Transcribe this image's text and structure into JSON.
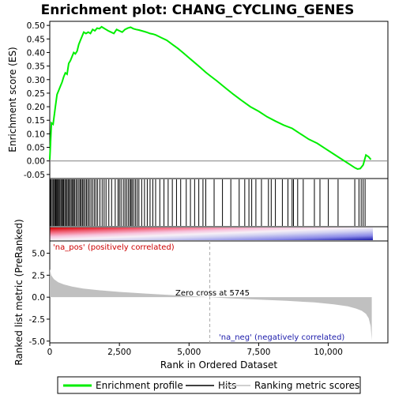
{
  "chart_data": {
    "type": "line",
    "title": "Enrichment plot: CHANG_CYCLING_GENES",
    "x_label": "Rank in Ordered Dataset",
    "x_range": [
      0,
      11600
    ],
    "x_ticks": [
      0,
      2500,
      5000,
      7500,
      10000
    ],
    "x_tick_labels": [
      "0",
      "2,500",
      "5,000",
      "7,500",
      "10,000"
    ],
    "top_panel": {
      "ylabel": "Enrichment score (ES)",
      "ylim": [
        -0.065,
        0.515
      ],
      "y_ticks": [
        -0.05,
        0.0,
        0.05,
        0.1,
        0.15,
        0.2,
        0.25,
        0.3,
        0.35,
        0.4,
        0.45,
        0.5
      ],
      "y_tick_labels": [
        "-0.05",
        "0.00",
        "0.05",
        "0.10",
        "0.15",
        "0.20",
        "0.25",
        "0.30",
        "0.35",
        "0.40",
        "0.45",
        "0.50"
      ],
      "series": [
        {
          "name": "Enrichment profile",
          "color": "#00ee00",
          "x": [
            0,
            60,
            120,
            200,
            260,
            320,
            380,
            440,
            500,
            560,
            620,
            680,
            740,
            800,
            860,
            920,
            980,
            1040,
            1100,
            1160,
            1220,
            1300,
            1380,
            1460,
            1540,
            1620,
            1700,
            1780,
            1860,
            1940,
            2020,
            2100,
            2200,
            2300,
            2400,
            2500,
            2600,
            2700,
            2800,
            2900,
            3000,
            3100,
            3200,
            3300,
            3400,
            3500,
            3600,
            3700,
            3800,
            3900,
            4000,
            4200,
            4400,
            4600,
            4800,
            5000,
            5200,
            5400,
            5600,
            5745,
            6000,
            6300,
            6600,
            6900,
            7200,
            7500,
            7800,
            8100,
            8400,
            8700,
            9000,
            9300,
            9600,
            9900,
            10200,
            10500,
            10800,
            10950,
            11050,
            11150,
            11250,
            11350,
            11450,
            11530
          ],
          "y": [
            0.005,
            0.14,
            0.135,
            0.2,
            0.245,
            0.26,
            0.275,
            0.29,
            0.31,
            0.325,
            0.32,
            0.36,
            0.37,
            0.385,
            0.4,
            0.395,
            0.405,
            0.43,
            0.445,
            0.46,
            0.475,
            0.47,
            0.475,
            0.47,
            0.485,
            0.48,
            0.49,
            0.488,
            0.495,
            0.49,
            0.485,
            0.48,
            0.475,
            0.47,
            0.485,
            0.48,
            0.475,
            0.485,
            0.49,
            0.493,
            0.488,
            0.485,
            0.483,
            0.48,
            0.477,
            0.474,
            0.47,
            0.468,
            0.465,
            0.46,
            0.455,
            0.445,
            0.43,
            0.415,
            0.398,
            0.38,
            0.363,
            0.345,
            0.327,
            0.315,
            0.295,
            0.27,
            0.245,
            0.222,
            0.2,
            0.183,
            0.163,
            0.147,
            0.132,
            0.12,
            0.1,
            0.08,
            0.065,
            0.045,
            0.025,
            0.005,
            -0.015,
            -0.025,
            -0.03,
            -0.028,
            -0.015,
            0.022,
            0.015,
            0.005
          ]
        }
      ]
    },
    "hits_panel": {
      "hits_label": "Hits",
      "hit_positions": [
        20,
        50,
        90,
        130,
        170,
        200,
        230,
        260,
        290,
        320,
        360,
        400,
        430,
        470,
        500,
        540,
        580,
        620,
        660,
        700,
        740,
        790,
        820,
        860,
        900,
        950,
        1000,
        1050,
        1100,
        1130,
        1180,
        1220,
        1270,
        1320,
        1370,
        1420,
        1480,
        1540,
        1600,
        1660,
        1720,
        1800,
        1880,
        1950,
        2020,
        2120,
        2220,
        2350,
        2450,
        2500,
        2560,
        2640,
        2700,
        2760,
        2820,
        2880,
        2920,
        2960,
        3020,
        3080,
        3140,
        3200,
        3300,
        3400,
        3500,
        3600,
        3700,
        3800,
        3950,
        4100,
        4250,
        4400,
        4550,
        4700,
        4900,
        5050,
        5200,
        5350,
        5500,
        5600,
        5900,
        6200,
        6500,
        6800,
        7000,
        7150,
        7250,
        7400,
        7600,
        7850,
        7950,
        8100,
        8350,
        8550,
        8700,
        8750,
        8900,
        9100,
        9500,
        9700,
        10000,
        10350,
        10950,
        11100,
        11180,
        11250,
        11320
      ]
    },
    "bottom_panel": {
      "ylabel": "Ranked list metric (PreRanked)",
      "ylim": [
        -5.2,
        6.4
      ],
      "y_ticks": [
        -5.0,
        -2.5,
        0.0,
        2.5,
        5.0
      ],
      "y_tick_labels": [
        "-5.0",
        "-2.5",
        "0.0",
        "2.5",
        "5.0"
      ],
      "metric_x": [
        0,
        50,
        150,
        300,
        500,
        800,
        1200,
        1800,
        2500,
        3500,
        4500,
        5745,
        6500,
        7500,
        8500,
        9500,
        10200,
        10700,
        11000,
        11200,
        11350,
        11450,
        11520,
        11560
      ],
      "metric_y": [
        3.2,
        2.5,
        2.05,
        1.7,
        1.45,
        1.2,
        0.98,
        0.78,
        0.6,
        0.4,
        0.22,
        0.0,
        -0.15,
        -0.28,
        -0.42,
        -0.6,
        -0.82,
        -1.05,
        -1.3,
        -1.55,
        -1.9,
        -2.4,
        -3.3,
        -4.9
      ],
      "zero_cross_rank": 5745,
      "zero_cross_label": "Zero cross at 5745",
      "pos_label": "'na_pos' (positively correlated)",
      "neg_label": "'na_neg' (negatively correlated)"
    },
    "legend": [
      {
        "label": "Enrichment profile",
        "color": "#00ee00"
      },
      {
        "label": "Hits",
        "color": "#000000"
      },
      {
        "label": "Ranking metric scores",
        "color": "#c0c0c0"
      }
    ],
    "legend_position": "bottom",
    "grid": false
  }
}
